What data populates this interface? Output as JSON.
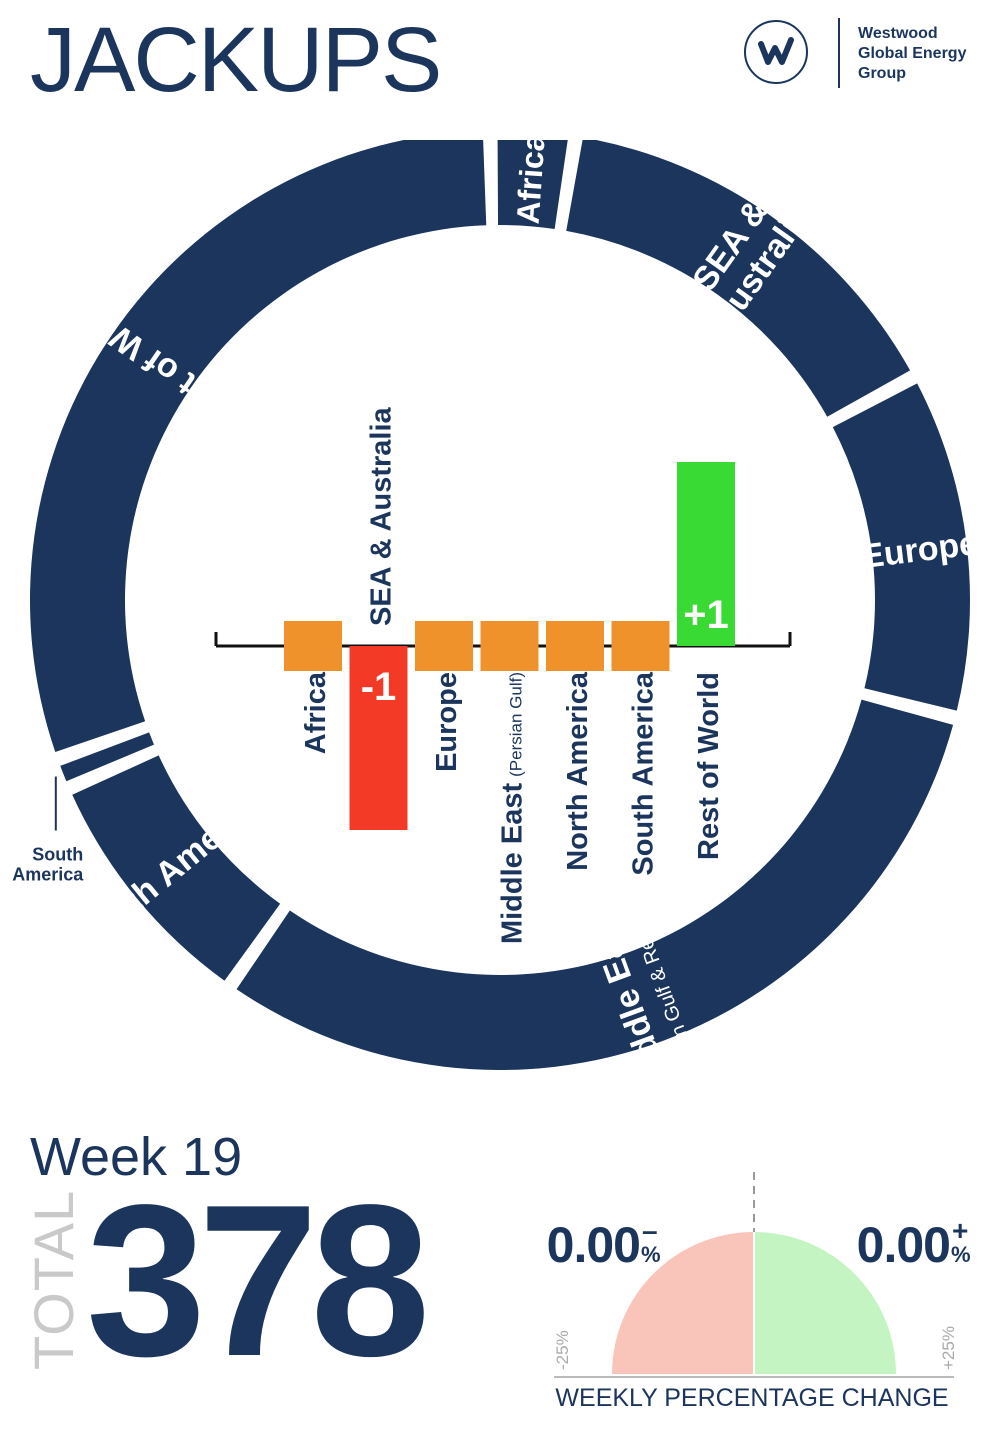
{
  "title": "JACKUPS",
  "logo": {
    "icon": "westwood-w-logo-icon",
    "lines": [
      "Westwood",
      "Global Energy",
      "Group"
    ]
  },
  "colors": {
    "navy": "#1b355d",
    "neutral": "#f0922b",
    "negative": "#f33a26",
    "positive": "#3ada34",
    "gauge_negative": "#f9c4ba",
    "gauge_positive": "#c5f4c3",
    "total_label": "#c9c9c9"
  },
  "chart_data": [
    {
      "type": "pie",
      "subtype": "donut",
      "categories": [
        "Africa",
        "SEA & Australia",
        "Europe",
        "Middle East",
        "North America",
        "South America",
        "Rest of World"
      ],
      "labels": [
        {
          "category": "Africa",
          "lines": [
            "Africa"
          ],
          "small": ""
        },
        {
          "category": "SEA & Australia",
          "lines": [
            "SEA &",
            "Australia"
          ],
          "small": ""
        },
        {
          "category": "Europe",
          "lines": [
            "Europe"
          ],
          "small": ""
        },
        {
          "category": "Middle East",
          "lines": [
            "Middle East"
          ],
          "small": "(Persian Gulf & Red Sea)"
        },
        {
          "category": "North America",
          "lines": [
            "North America"
          ],
          "small": ""
        },
        {
          "category": "South America",
          "lines": [
            "South",
            "America"
          ],
          "small": ""
        },
        {
          "category": "Rest of World",
          "lines": [
            "Rest of World"
          ],
          "small": ""
        }
      ],
      "values": [
        11,
        55,
        45,
        116,
        33,
        4,
        114
      ]
    },
    {
      "type": "bar",
      "categories": [
        "Africa",
        "SEA & Australia",
        "Europe",
        "Middle East",
        "North America",
        "South America",
        "Rest of World"
      ],
      "labels": [
        {
          "main": "Africa",
          "small": ""
        },
        {
          "main": "SEA & Australia",
          "small": ""
        },
        {
          "main": "Europe",
          "small": ""
        },
        {
          "main": "Middle East",
          "small": "(Persian Gulf)"
        },
        {
          "main": "North America",
          "small": ""
        },
        {
          "main": "South America",
          "small": ""
        },
        {
          "main": "Rest of World",
          "small": ""
        }
      ],
      "values": [
        0,
        -1,
        0,
        0,
        0,
        0,
        1
      ],
      "data_labels": [
        "",
        "-1",
        "",
        "",
        "",
        "",
        "+1"
      ]
    },
    {
      "type": "gauge",
      "title": "WEEKLY PERCENTAGE CHANGE",
      "negative": {
        "value": "0.00",
        "sign": "–",
        "unit": "%"
      },
      "positive": {
        "value": "0.00",
        "sign": "+",
        "unit": "%"
      },
      "range_labels": [
        "-25%",
        "+25%"
      ],
      "range": [
        -25,
        25
      ]
    }
  ],
  "summary": {
    "week": "Week 19",
    "total_label": "TOTAL",
    "total_value": "378"
  }
}
